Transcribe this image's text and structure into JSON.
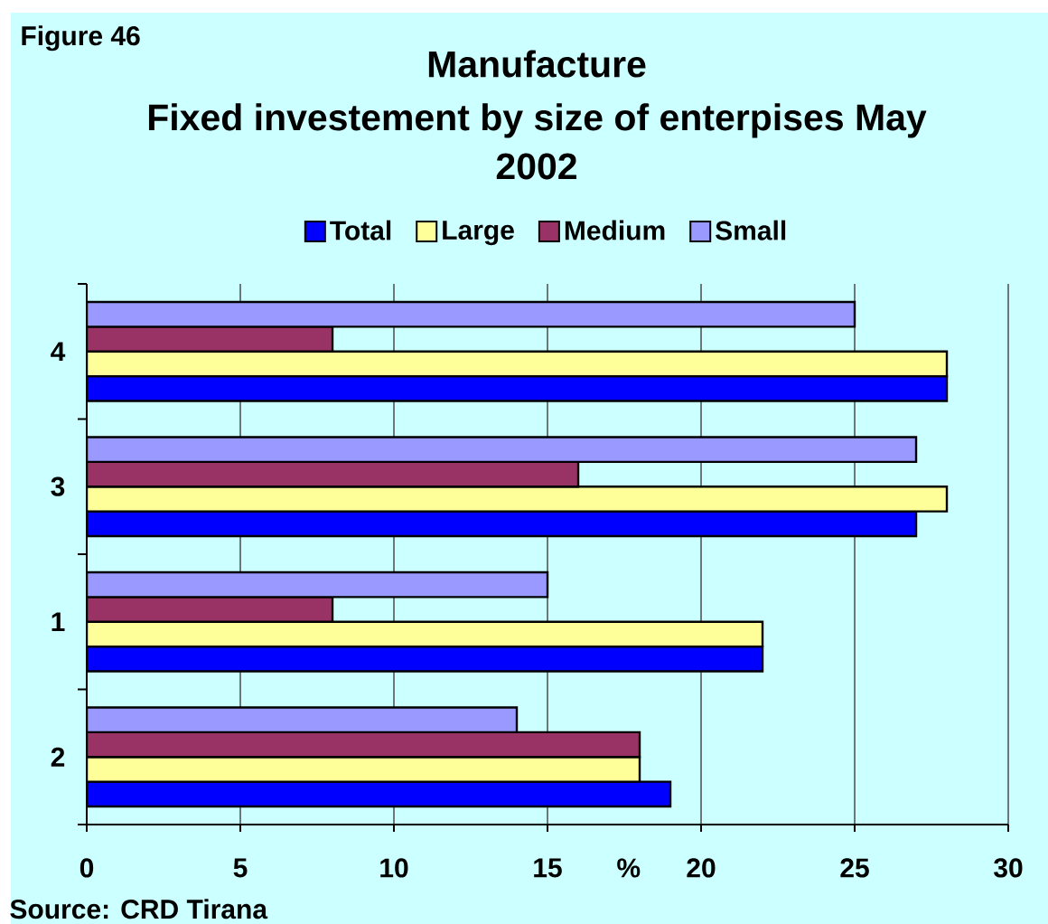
{
  "chart_data": {
    "type": "bar",
    "orientation": "horizontal",
    "title": "Manufacture",
    "subtitle": "Fixed investement by size of enterpises May 2002",
    "xlabel": "%",
    "categories": [
      "4",
      "3",
      "1",
      "2"
    ],
    "series": [
      {
        "name": "Total",
        "color": "#0000ff",
        "values": [
          28,
          27,
          22,
          19
        ]
      },
      {
        "name": "Large",
        "color": "#ffff99",
        "values": [
          28,
          28,
          22,
          18
        ]
      },
      {
        "name": "Medium",
        "color": "#993366",
        "values": [
          8,
          16,
          8,
          18
        ]
      },
      {
        "name": "Small",
        "color": "#9999ff",
        "values": [
          25,
          27,
          15,
          14
        ]
      }
    ],
    "xlim": [
      0,
      30
    ],
    "xticks": [
      0,
      5,
      10,
      15,
      20,
      25,
      30
    ],
    "grid": "x",
    "legend": "top",
    "annotations": [
      "Figure 46",
      "Source: CRD Tirana"
    ]
  }
}
